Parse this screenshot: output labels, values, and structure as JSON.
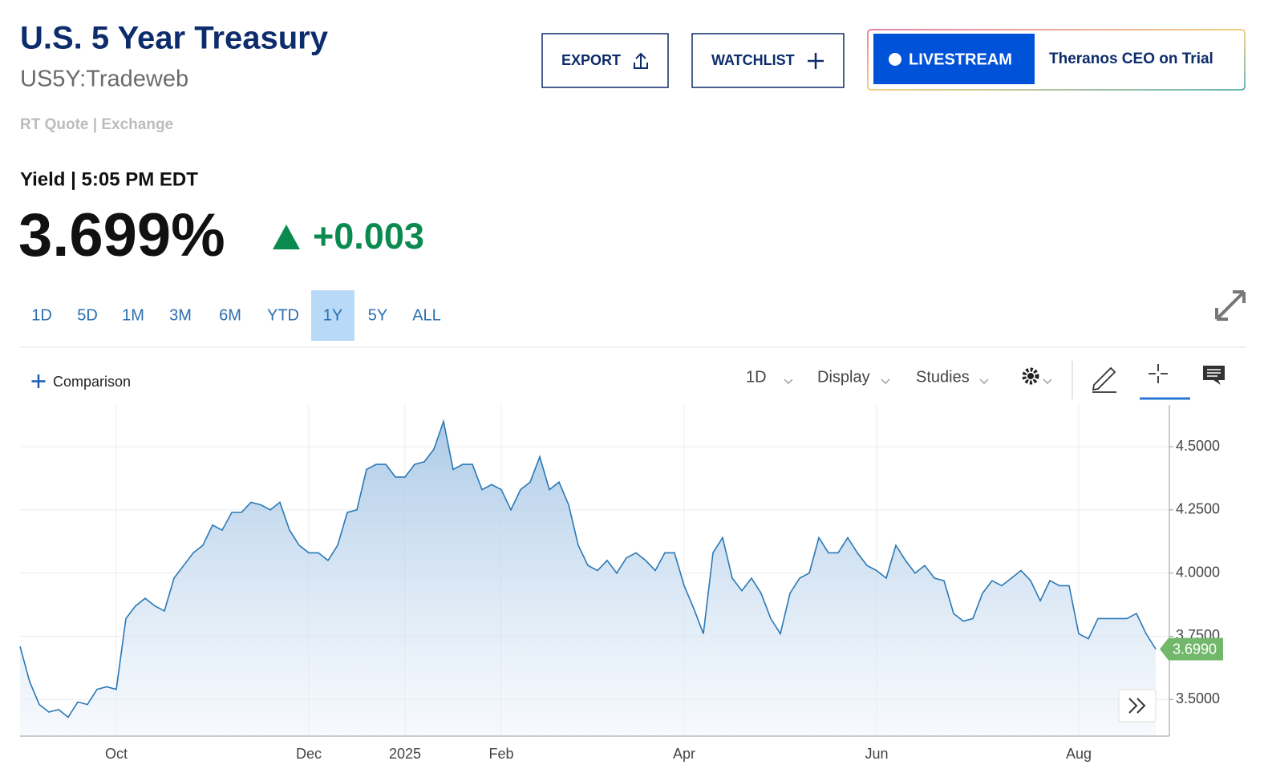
{
  "header": {
    "title": "U.S. 5 Year Treasury",
    "symbol": "US5Y:Tradeweb",
    "quote_source": "RT Quote | Exchange"
  },
  "buttons": {
    "export": "EXPORT",
    "watchlist": "WATCHLIST",
    "livestream": "LIVESTREAM",
    "livestream_title": "Theranos CEO on Trial"
  },
  "quote": {
    "label": "Yield | 5:05 PM EDT",
    "price": "3.699%",
    "change": "+0.003"
  },
  "ranges": [
    "1D",
    "5D",
    "1M",
    "3M",
    "6M",
    "YTD",
    "1Y",
    "5Y",
    "ALL"
  ],
  "selected_range": "1Y",
  "toolbar": {
    "comparison": "Comparison",
    "interval": "1D",
    "display": "Display",
    "studies": "Studies"
  },
  "chart_data": {
    "type": "area",
    "categories": [
      null,
      null,
      null,
      null,
      null,
      null,
      null,
      null,
      null,
      null,
      "Oct",
      null,
      null,
      null,
      null,
      null,
      null,
      null,
      null,
      null,
      null,
      null,
      null,
      null,
      null,
      null,
      null,
      null,
      null,
      null,
      "Dec",
      null,
      null,
      null,
      null,
      null,
      null,
      null,
      null,
      null,
      "2025",
      null,
      null,
      null,
      null,
      null,
      null,
      null,
      null,
      null,
      "Feb",
      null,
      null,
      null,
      null,
      null,
      null,
      null,
      null,
      null,
      null,
      null,
      null,
      null,
      null,
      null,
      null,
      null,
      null,
      "Apr",
      null,
      null,
      null,
      null,
      null,
      null,
      null,
      null,
      null,
      null,
      null,
      null,
      null,
      null,
      null,
      null,
      null,
      null,
      null,
      "Jun",
      null,
      null,
      null,
      null,
      null,
      null,
      null,
      null,
      null,
      null,
      null,
      null,
      null,
      null,
      null,
      null,
      null,
      null,
      null,
      null,
      "Aug",
      null,
      null,
      null,
      null,
      null,
      null,
      null,
      null
    ],
    "values": [
      3.71,
      3.57,
      3.48,
      3.45,
      3.46,
      3.43,
      3.49,
      3.48,
      3.54,
      3.55,
      3.54,
      3.82,
      3.87,
      3.9,
      3.87,
      3.85,
      3.98,
      4.03,
      4.08,
      4.11,
      4.19,
      4.17,
      4.24,
      4.24,
      4.28,
      4.27,
      4.25,
      4.28,
      4.17,
      4.11,
      4.08,
      4.08,
      4.05,
      4.11,
      4.24,
      4.25,
      4.41,
      4.43,
      4.43,
      4.38,
      4.38,
      4.43,
      4.44,
      4.49,
      4.6,
      4.41,
      4.43,
      4.43,
      4.33,
      4.35,
      4.33,
      4.25,
      4.33,
      4.36,
      4.46,
      4.33,
      4.36,
      4.27,
      4.11,
      4.03,
      4.01,
      4.05,
      4.0,
      4.06,
      4.08,
      4.05,
      4.01,
      4.08,
      4.08,
      3.95,
      3.86,
      3.76,
      4.08,
      4.14,
      3.98,
      3.93,
      3.98,
      3.92,
      3.82,
      3.76,
      3.92,
      3.98,
      4.0,
      4.14,
      4.08,
      4.08,
      4.14,
      4.08,
      4.03,
      4.01,
      3.98,
      4.11,
      4.05,
      4.0,
      4.03,
      3.98,
      3.97,
      3.84,
      3.81,
      3.82,
      3.92,
      3.97,
      3.95,
      3.98,
      4.01,
      3.97,
      3.89,
      3.97,
      3.95,
      3.95,
      3.76,
      3.74,
      3.82,
      3.82,
      3.82,
      3.82,
      3.84,
      3.76,
      3.699
    ],
    "last_label": "3.6990",
    "color": "#2a78b5",
    "ylim": [
      3.355,
      4.665
    ],
    "yticks": [
      {
        "value": 3.5,
        "label": "3.5000"
      },
      {
        "value": 3.75,
        "label": "3.7500"
      },
      {
        "value": 4.0,
        "label": "4.0000"
      },
      {
        "value": 4.25,
        "label": "4.2500"
      },
      {
        "value": 4.5,
        "label": "4.5000"
      }
    ],
    "grid": true
  }
}
